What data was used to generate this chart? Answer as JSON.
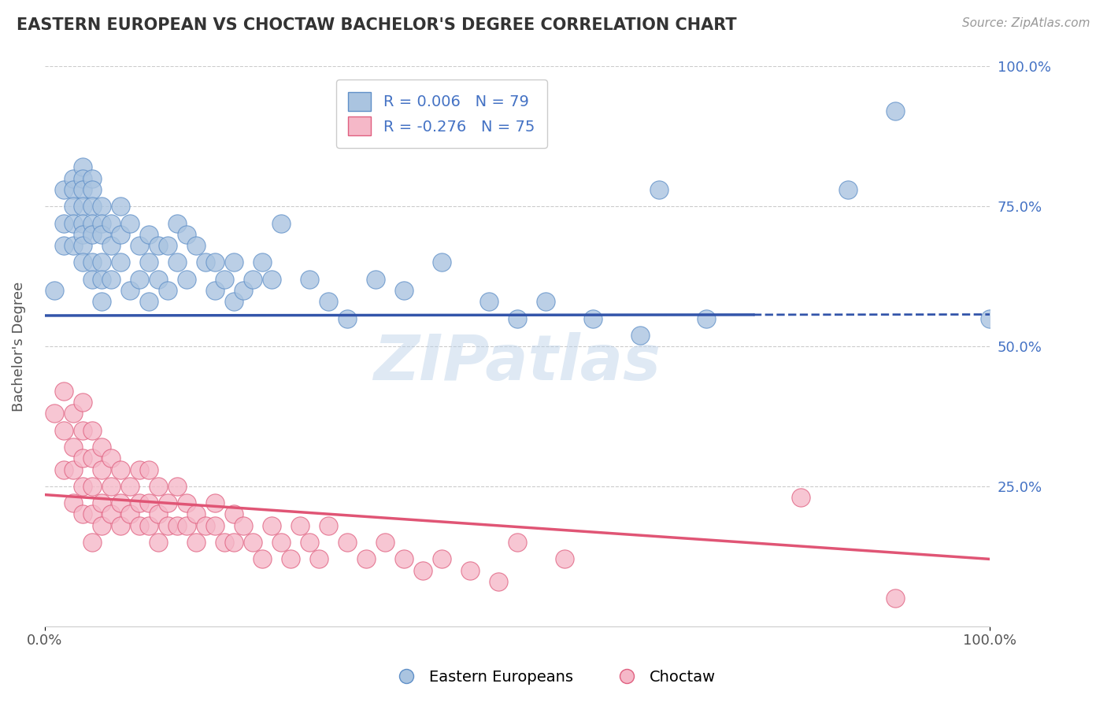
{
  "title": "EASTERN EUROPEAN VS CHOCTAW BACHELOR'S DEGREE CORRELATION CHART",
  "source": "Source: ZipAtlas.com",
  "ylabel": "Bachelor's Degree",
  "xlim": [
    0.0,
    1.0
  ],
  "ylim": [
    0.0,
    1.0
  ],
  "xtick_labels": [
    "0.0%",
    "100.0%"
  ],
  "xtick_values": [
    0.0,
    1.0
  ],
  "ytick_labels": [
    "100.0%",
    "75.0%",
    "50.0%",
    "25.0%"
  ],
  "ytick_values": [
    1.0,
    0.75,
    0.5,
    0.25
  ],
  "blue_R": 0.006,
  "blue_N": 79,
  "pink_R": -0.276,
  "pink_N": 75,
  "blue_color": "#aac4e0",
  "pink_color": "#f5b8c8",
  "blue_edge_color": "#6090c8",
  "pink_edge_color": "#e06080",
  "blue_line_color": "#3355aa",
  "pink_line_color": "#e05575",
  "blue_line_solid_end": 0.75,
  "watermark": "ZIPatlas",
  "blue_line_intercept": 0.555,
  "blue_line_slope": 0.002,
  "pink_line_intercept": 0.235,
  "pink_line_slope": -0.115,
  "blue_scatter_x": [
    0.01,
    0.02,
    0.02,
    0.02,
    0.03,
    0.03,
    0.03,
    0.03,
    0.03,
    0.04,
    0.04,
    0.04,
    0.04,
    0.04,
    0.04,
    0.04,
    0.04,
    0.05,
    0.05,
    0.05,
    0.05,
    0.05,
    0.05,
    0.05,
    0.06,
    0.06,
    0.06,
    0.06,
    0.06,
    0.06,
    0.07,
    0.07,
    0.07,
    0.08,
    0.08,
    0.08,
    0.09,
    0.09,
    0.1,
    0.1,
    0.11,
    0.11,
    0.11,
    0.12,
    0.12,
    0.13,
    0.13,
    0.14,
    0.14,
    0.15,
    0.15,
    0.16,
    0.17,
    0.18,
    0.18,
    0.19,
    0.2,
    0.2,
    0.21,
    0.22,
    0.23,
    0.24,
    0.25,
    0.28,
    0.3,
    0.32,
    0.35,
    0.38,
    0.42,
    0.47,
    0.5,
    0.53,
    0.58,
    0.63,
    0.65,
    0.7,
    0.85,
    0.9,
    1.0
  ],
  "blue_scatter_y": [
    0.6,
    0.78,
    0.72,
    0.68,
    0.8,
    0.78,
    0.75,
    0.72,
    0.68,
    0.82,
    0.8,
    0.78,
    0.75,
    0.72,
    0.7,
    0.68,
    0.65,
    0.8,
    0.78,
    0.75,
    0.72,
    0.7,
    0.65,
    0.62,
    0.75,
    0.72,
    0.7,
    0.65,
    0.62,
    0.58,
    0.72,
    0.68,
    0.62,
    0.75,
    0.7,
    0.65,
    0.72,
    0.6,
    0.68,
    0.62,
    0.7,
    0.65,
    0.58,
    0.68,
    0.62,
    0.68,
    0.6,
    0.72,
    0.65,
    0.7,
    0.62,
    0.68,
    0.65,
    0.65,
    0.6,
    0.62,
    0.65,
    0.58,
    0.6,
    0.62,
    0.65,
    0.62,
    0.72,
    0.62,
    0.58,
    0.55,
    0.62,
    0.6,
    0.65,
    0.58,
    0.55,
    0.58,
    0.55,
    0.52,
    0.78,
    0.55,
    0.78,
    0.92,
    0.55
  ],
  "pink_scatter_x": [
    0.01,
    0.02,
    0.02,
    0.02,
    0.03,
    0.03,
    0.03,
    0.03,
    0.04,
    0.04,
    0.04,
    0.04,
    0.04,
    0.05,
    0.05,
    0.05,
    0.05,
    0.05,
    0.06,
    0.06,
    0.06,
    0.06,
    0.07,
    0.07,
    0.07,
    0.08,
    0.08,
    0.08,
    0.09,
    0.09,
    0.1,
    0.1,
    0.1,
    0.11,
    0.11,
    0.11,
    0.12,
    0.12,
    0.12,
    0.13,
    0.13,
    0.14,
    0.14,
    0.15,
    0.15,
    0.16,
    0.16,
    0.17,
    0.18,
    0.18,
    0.19,
    0.2,
    0.2,
    0.21,
    0.22,
    0.23,
    0.24,
    0.25,
    0.26,
    0.27,
    0.28,
    0.29,
    0.3,
    0.32,
    0.34,
    0.36,
    0.38,
    0.4,
    0.42,
    0.45,
    0.48,
    0.5,
    0.55,
    0.8,
    0.9
  ],
  "pink_scatter_y": [
    0.38,
    0.42,
    0.35,
    0.28,
    0.38,
    0.32,
    0.28,
    0.22,
    0.4,
    0.35,
    0.3,
    0.25,
    0.2,
    0.35,
    0.3,
    0.25,
    0.2,
    0.15,
    0.32,
    0.28,
    0.22,
    0.18,
    0.3,
    0.25,
    0.2,
    0.28,
    0.22,
    0.18,
    0.25,
    0.2,
    0.28,
    0.22,
    0.18,
    0.28,
    0.22,
    0.18,
    0.25,
    0.2,
    0.15,
    0.22,
    0.18,
    0.25,
    0.18,
    0.22,
    0.18,
    0.2,
    0.15,
    0.18,
    0.22,
    0.18,
    0.15,
    0.2,
    0.15,
    0.18,
    0.15,
    0.12,
    0.18,
    0.15,
    0.12,
    0.18,
    0.15,
    0.12,
    0.18,
    0.15,
    0.12,
    0.15,
    0.12,
    0.1,
    0.12,
    0.1,
    0.08,
    0.15,
    0.12,
    0.23,
    0.05
  ],
  "grid_color": "#cccccc",
  "background_color": "#ffffff",
  "legend_label_blue": "Eastern Europeans",
  "legend_label_pink": "Choctaw"
}
